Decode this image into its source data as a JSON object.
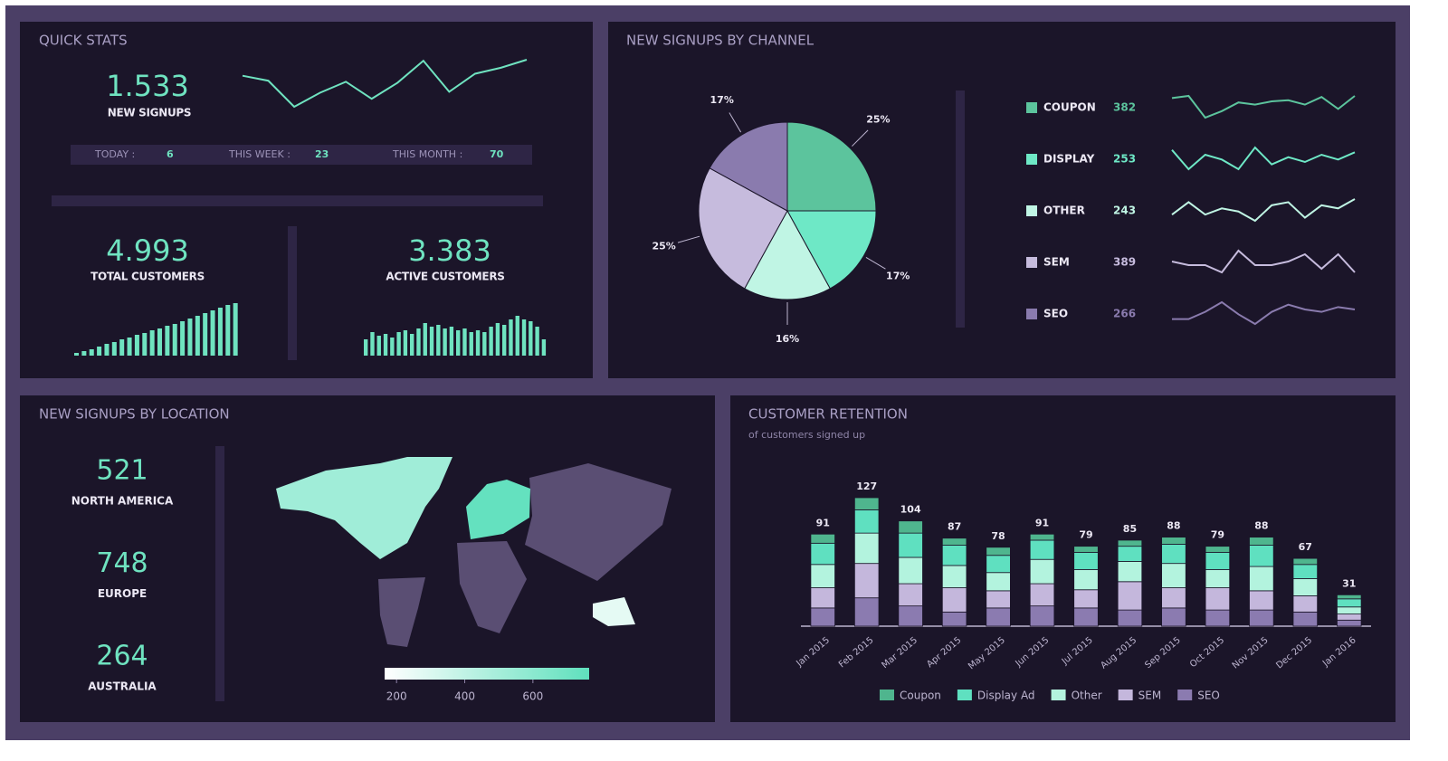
{
  "quick_stats": {
    "title": "QUICK STATS",
    "new_signups": "1.533",
    "new_signups_label": "NEW SIGNUPS",
    "today_label": "TODAY :",
    "today": 6,
    "week_label": "THIS WEEK :",
    "week": 23,
    "month_label": "THIS MONTH :",
    "month": 70,
    "total_customers": "4.993",
    "total_customers_label": "TOTAL CUSTOMERS",
    "active_customers": "3.383",
    "active_customers_label": "ACTIVE CUSTOMERS"
  },
  "chart_data": [
    {
      "type": "line",
      "values": [
        45,
        40,
        14,
        28,
        39,
        22,
        38,
        60,
        29,
        47,
        53,
        61
      ],
      "color": "#6fe3c0"
    },
    {
      "type": "bar",
      "values": [
        3,
        5,
        7,
        10,
        13,
        15,
        18,
        20,
        23,
        25,
        28,
        30,
        33,
        35,
        38,
        41,
        44,
        47,
        50,
        53,
        56,
        58
      ],
      "color": "#6fe3c0"
    },
    {
      "type": "bar",
      "values": [
        18,
        26,
        22,
        24,
        20,
        26,
        28,
        24,
        30,
        36,
        32,
        34,
        30,
        32,
        28,
        30,
        26,
        28,
        26,
        32,
        36,
        34,
        40,
        44,
        40,
        38,
        32,
        18
      ],
      "color": "#6fe3c0"
    },
    {
      "type": "pie",
      "title": "NEW SIGNUPS BY CHANNEL",
      "categories": [
        "COUPON",
        "DISPLAY",
        "OTHER",
        "SEM",
        "SEO"
      ],
      "values": [
        25,
        17,
        16,
        25,
        17
      ],
      "value_labels": [
        "25%",
        "17%",
        "16%",
        "25%",
        "17%"
      ],
      "colors": [
        "#5cc49d",
        "#6ee8c6",
        "#c0f5e4",
        "#c6bbdd",
        "#8a7bae"
      ],
      "counts": [
        382,
        253,
        243,
        389,
        266
      ],
      "trends": [
        [
          22,
          24,
          4,
          10,
          18,
          16,
          19,
          20,
          16,
          23,
          12,
          24
        ],
        [
          16,
          0,
          12,
          8,
          0,
          18,
          4,
          10,
          6,
          12,
          8,
          14
        ],
        [
          6,
          14,
          6,
          10,
          8,
          2,
          12,
          14,
          4,
          12,
          10,
          16
        ],
        [
          8,
          6,
          6,
          2,
          14,
          6,
          6,
          8,
          12,
          4,
          12,
          2
        ],
        [
          4,
          4,
          10,
          18,
          8,
          0,
          10,
          16,
          12,
          10,
          14,
          12
        ]
      ]
    },
    {
      "type": "map",
      "title": "NEW SIGNUPS BY LOCATION",
      "regions": [
        {
          "name": "NORTH AMERICA",
          "value": 521
        },
        {
          "name": "EUROPE",
          "value": 748
        },
        {
          "name": "AUSTRALIA",
          "value": 264
        }
      ],
      "clim": [
        165,
        765
      ],
      "ticks": [
        200,
        400,
        600
      ],
      "colors": [
        "#ffffff",
        "#5fe0bd"
      ]
    },
    {
      "type": "bar",
      "stacked": true,
      "title": "CUSTOMER RETENTION",
      "subtitle": "of customers signed up",
      "categories": [
        "Jan 2015",
        "Feb 2015",
        "Mar 2015",
        "Apr 2015",
        "May 2015",
        "Jun 2015",
        "Jul 2015",
        "Aug 2015",
        "Sep 2015",
        "Oct 2015",
        "Nov 2015",
        "Dec 2015",
        "Jan 2016"
      ],
      "totals": [
        91,
        127,
        104,
        87,
        78,
        91,
        79,
        85,
        88,
        79,
        88,
        67,
        31
      ],
      "series": [
        {
          "name": "Coupon",
          "color": "#4fb58e",
          "values": [
            9,
            12,
            12,
            7,
            8,
            6,
            6,
            6,
            7,
            6,
            8,
            6,
            4
          ]
        },
        {
          "name": "Display Ad",
          "color": "#5fe0c0",
          "values": [
            21,
            23,
            24,
            20,
            17,
            19,
            17,
            15,
            19,
            17,
            21,
            14,
            8
          ]
        },
        {
          "name": "Other",
          "color": "#b3f3de",
          "values": [
            23,
            30,
            26,
            22,
            18,
            24,
            20,
            20,
            24,
            18,
            24,
            17,
            7
          ]
        },
        {
          "name": "SEM",
          "color": "#c4b7dc",
          "values": [
            20,
            34,
            22,
            24,
            17,
            22,
            18,
            28,
            20,
            22,
            19,
            16,
            6
          ]
        },
        {
          "name": "SEO",
          "color": "#8b7bb0",
          "values": [
            18,
            28,
            20,
            14,
            18,
            20,
            18,
            16,
            18,
            16,
            16,
            14,
            6
          ]
        }
      ]
    }
  ]
}
